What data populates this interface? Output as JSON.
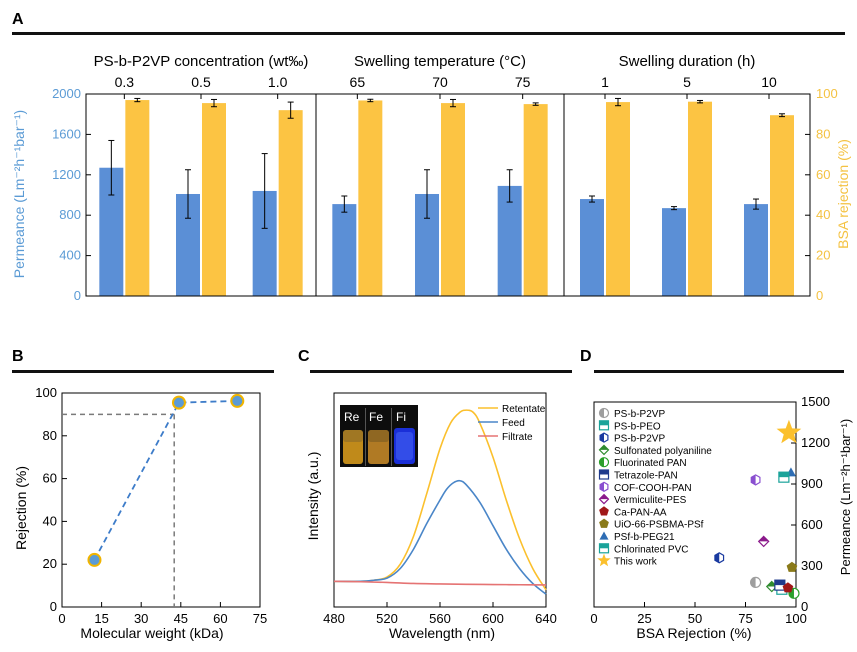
{
  "colors": {
    "blue": "#5b8fd6",
    "yellow": "#fcc443",
    "blue_text": "#5b9bd5",
    "yellow_text": "#f4c242",
    "marker": "#5b9bd5",
    "retentate": "#fbc02d",
    "feed": "#4a86c8",
    "filtrate": "#e57373",
    "star": "#fbc02d"
  },
  "chart_data": [
    {
      "id": "A",
      "panel_label": "A",
      "type": "bar",
      "ylabel_left": "Permeance (Lm⁻²h⁻¹bar⁻¹)",
      "ylabel_right": "BSA rejection (%)",
      "ylim_left": [
        0,
        2000
      ],
      "yticks_left": [
        "0",
        "400",
        "800",
        "1200",
        "1600",
        "2000"
      ],
      "ylim_right": [
        0,
        100
      ],
      "yticks_right": [
        "0",
        "20",
        "40",
        "60",
        "80",
        "100"
      ],
      "groups": [
        {
          "title": "PS-b-P2VP concentration (wt‰)",
          "categories": [
            "0.3",
            "0.5",
            "1.0"
          ],
          "permeance": [
            1270,
            1010,
            1040
          ],
          "permeance_err": [
            270,
            240,
            370
          ],
          "rejection": [
            97,
            95.5,
            92
          ],
          "rejection_err": [
            0.8,
            1.8,
            4
          ]
        },
        {
          "title": "Swelling temperature (°C)",
          "categories": [
            "65",
            "70",
            "75"
          ],
          "permeance": [
            910,
            1010,
            1090
          ],
          "permeance_err": [
            80,
            240,
            160
          ],
          "rejection": [
            96.8,
            95.5,
            95
          ],
          "rejection_err": [
            0.6,
            1.8,
            0.6
          ]
        },
        {
          "title": "Swelling duration (h)",
          "categories": [
            "1",
            "5",
            "10"
          ],
          "permeance": [
            960,
            870,
            910
          ],
          "permeance_err": [
            30,
            15,
            50
          ],
          "rejection": [
            96,
            96.2,
            89.5
          ],
          "rejection_err": [
            1.8,
            0.6,
            0.7
          ]
        }
      ]
    },
    {
      "id": "B",
      "panel_label": "B",
      "type": "line",
      "xlabel": "Molecular weight (kDa)",
      "ylabel": "Rejection (%)",
      "xlim": [
        0,
        75
      ],
      "ylim": [
        0,
        100
      ],
      "xticks": [
        "0",
        "15",
        "30",
        "45",
        "60",
        "75"
      ],
      "yticks": [
        "0",
        "20",
        "40",
        "60",
        "80",
        "100"
      ],
      "x": [
        12.3,
        44.3,
        66.4
      ],
      "y": [
        22,
        95.5,
        96.3
      ],
      "cutoff_y": 90,
      "cutoff_x": 42.5
    },
    {
      "id": "C",
      "panel_label": "C",
      "type": "line",
      "xlabel": "Wavelength (nm)",
      "ylabel": "Intensity (a.u.)",
      "xlim": [
        480,
        640
      ],
      "xticks": [
        "480",
        "520",
        "560",
        "600",
        "640"
      ],
      "ylim": [
        0,
        100
      ],
      "inset_labels": [
        "Re",
        "Fe",
        "Fi"
      ],
      "series": [
        {
          "name": "Retentate",
          "x": [
            480,
            500,
            510,
            520,
            530,
            540,
            550,
            560,
            568,
            575,
            580,
            585,
            590,
            600,
            610,
            620,
            630,
            640
          ],
          "y": [
            12,
            12,
            12.5,
            14,
            20,
            33,
            53,
            74,
            86,
            91,
            92,
            91,
            86,
            70,
            50,
            32,
            18,
            8
          ]
        },
        {
          "name": "Feed",
          "x": [
            480,
            500,
            510,
            520,
            530,
            540,
            550,
            560,
            565,
            570,
            575,
            580,
            590,
            600,
            610,
            620,
            630,
            640
          ],
          "y": [
            12,
            12,
            12.5,
            13.5,
            18,
            27,
            39,
            50,
            55,
            58,
            59,
            57,
            49,
            38,
            27,
            18,
            11,
            6
          ]
        },
        {
          "name": "Filtrate",
          "x": [
            480,
            500,
            520,
            540,
            560,
            580,
            600,
            620,
            640
          ],
          "y": [
            12,
            11.8,
            11.5,
            11,
            10.8,
            10.6,
            10.5,
            10.4,
            10.3
          ]
        }
      ]
    },
    {
      "id": "D",
      "panel_label": "D",
      "type": "scatter",
      "xlabel": "BSA Rejection (%)",
      "ylabel": "Permeance (Lm⁻²h⁻¹bar⁻¹)",
      "xlim": [
        0,
        100
      ],
      "ylim": [
        0,
        1500
      ],
      "xticks": [
        "0",
        "25",
        "50",
        "75",
        "100"
      ],
      "yticks": [
        "0",
        "300",
        "600",
        "900",
        "1200",
        "1500"
      ],
      "points": [
        {
          "name": "PS-b-P2VP",
          "marker": "half-circle",
          "color": "#9e9e9e",
          "x": 80,
          "y": 180
        },
        {
          "name": "PS-b-PEO",
          "marker": "half-square",
          "color": "#1aa39a",
          "x": 93,
          "y": 130
        },
        {
          "name": "PS-b-P2VP",
          "marker": "half-hexagon",
          "color": "#1a3aa0",
          "x": 62,
          "y": 360
        },
        {
          "name": "Sulfonated polyaniline",
          "marker": "half-diamond",
          "color": "#2e8b2e",
          "x": 88,
          "y": 150
        },
        {
          "name": "Fluorinated PAN",
          "marker": "half-circle",
          "color": "#2ca02c",
          "x": 99,
          "y": 100
        },
        {
          "name": "Tetrazole-PAN",
          "marker": "half-square",
          "color": "#1f3b8c",
          "x": 92,
          "y": 160
        },
        {
          "name": "COF-COOH-PAN",
          "marker": "half-hexagon",
          "color": "#8a4fd0",
          "x": 80,
          "y": 930
        },
        {
          "name": "Vermiculite-PES",
          "marker": "half-diamond",
          "color": "#8b1a8b",
          "x": 84,
          "y": 480
        },
        {
          "name": "Ca-PAN-AA",
          "marker": "pentagon",
          "color": "#a01818",
          "x": 96,
          "y": 140
        },
        {
          "name": "UiO-66-PSBMA-PSf",
          "marker": "pentagon",
          "color": "#8a7a1a",
          "x": 98,
          "y": 290
        },
        {
          "name": "PSf-b-PEG21",
          "marker": "triangle",
          "color": "#2e6db4",
          "x": 97.5,
          "y": 985
        },
        {
          "name": "Chlorinated PVC",
          "marker": "half-square",
          "color": "#1aa39a",
          "x": 94,
          "y": 950
        },
        {
          "name": "This work",
          "marker": "star",
          "color": "#fbc02d",
          "x": 96.5,
          "y": 1275
        }
      ],
      "legend": [
        {
          "name": "PS-b-P2VP",
          "marker": "half-circle",
          "color": "#9e9e9e"
        },
        {
          "name": "PS-b-PEO",
          "marker": "half-square",
          "color": "#1aa39a"
        },
        {
          "name": "PS-b-P2VP",
          "marker": "half-hexagon",
          "color": "#1a3aa0"
        },
        {
          "name": "Sulfonated polyaniline",
          "marker": "half-diamond",
          "color": "#2e8b2e"
        },
        {
          "name": "Fluorinated PAN",
          "marker": "half-circle",
          "color": "#2ca02c"
        },
        {
          "name": "Tetrazole-PAN",
          "marker": "half-square",
          "color": "#1f3b8c"
        },
        {
          "name": "COF-COOH-PAN",
          "marker": "half-hexagon",
          "color": "#8a4fd0"
        },
        {
          "name": "Vermiculite-PES",
          "marker": "half-diamond",
          "color": "#8b1a8b"
        },
        {
          "name": "Ca-PAN-AA",
          "marker": "pentagon",
          "color": "#a01818"
        },
        {
          "name": "UiO-66-PSBMA-PSf",
          "marker": "pentagon",
          "color": "#8a7a1a"
        },
        {
          "name": "PSf-b-PEG21",
          "marker": "triangle",
          "color": "#2e6db4"
        },
        {
          "name": "Chlorinated PVC",
          "marker": "half-square",
          "color": "#1aa39a"
        },
        {
          "name": "This work",
          "marker": "star",
          "color": "#fbc02d"
        }
      ]
    }
  ]
}
